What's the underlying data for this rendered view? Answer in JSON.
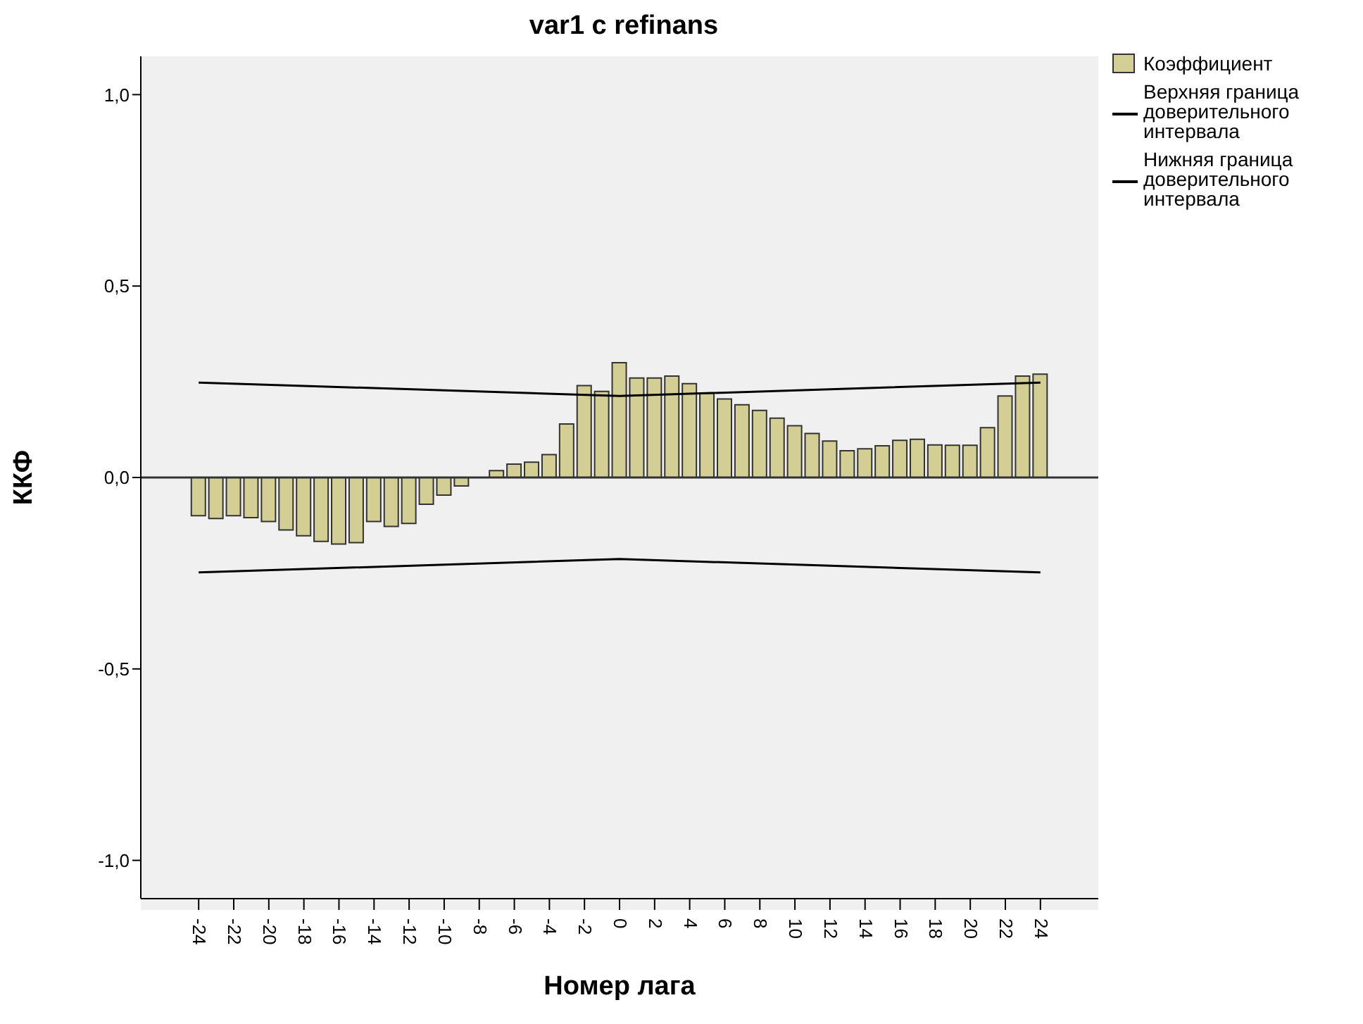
{
  "chart_data": {
    "type": "bar",
    "title": "var1 с refinans",
    "xlabel": "Номер лага",
    "ylabel": "ККФ",
    "x": [
      -24,
      -23,
      -22,
      -21,
      -20,
      -19,
      -18,
      -17,
      -16,
      -15,
      -14,
      -13,
      -12,
      -11,
      -10,
      -9,
      -8,
      -7,
      -6,
      -5,
      -4,
      -3,
      -2,
      -1,
      0,
      1,
      2,
      3,
      4,
      5,
      6,
      7,
      8,
      9,
      10,
      11,
      12,
      13,
      14,
      15,
      16,
      17,
      18,
      19,
      20,
      21,
      22,
      23,
      24
    ],
    "series": [
      {
        "name": "Коэффициент",
        "color": "#d3cf94",
        "values": [
          -0.1,
          -0.107,
          -0.1,
          -0.105,
          -0.115,
          -0.137,
          -0.152,
          -0.167,
          -0.174,
          -0.17,
          -0.115,
          -0.128,
          -0.12,
          -0.07,
          -0.046,
          -0.022,
          null,
          0.018,
          0.035,
          0.04,
          0.06,
          0.14,
          0.24,
          0.225,
          0.3,
          0.26,
          0.26,
          0.265,
          0.245,
          0.22,
          0.205,
          0.19,
          0.175,
          0.155,
          0.135,
          0.115,
          0.095,
          0.07,
          0.075,
          0.083,
          0.097,
          0.1,
          0.085,
          0.084,
          0.084,
          0.13,
          0.213,
          0.265,
          0.27
        ]
      },
      {
        "name": "Верхняя граница доверительного интервала",
        "type": "line",
        "color": "#000000",
        "x": [
          -24,
          0,
          24
        ],
        "values": [
          0.248,
          0.213,
          0.248
        ]
      },
      {
        "name": "Нижняя граница доверительного интервала",
        "type": "line",
        "color": "#000000",
        "x": [
          -24,
          0,
          24
        ],
        "values": [
          -0.248,
          -0.213,
          -0.248
        ]
      }
    ],
    "xlim": [
      -27.3,
      27.3
    ],
    "xticks": [
      -24,
      -22,
      -20,
      -18,
      -16,
      -14,
      -12,
      -10,
      -8,
      -6,
      -4,
      -2,
      0,
      2,
      4,
      6,
      8,
      10,
      12,
      14,
      16,
      18,
      20,
      22,
      24
    ],
    "ylim": [
      -1.1,
      1.1
    ],
    "yticks": [
      {
        "value": -1,
        "label": "-1,0"
      },
      {
        "value": -0.5,
        "label": "-0,5"
      },
      {
        "value": 0,
        "label": "0,0"
      },
      {
        "value": 0.5,
        "label": "0,5"
      },
      {
        "value": 1,
        "label": "1,0"
      }
    ],
    "ref_lines": [
      {
        "axis": "y",
        "value": 0,
        "color": "#333333"
      }
    ],
    "legend": "top right"
  }
}
